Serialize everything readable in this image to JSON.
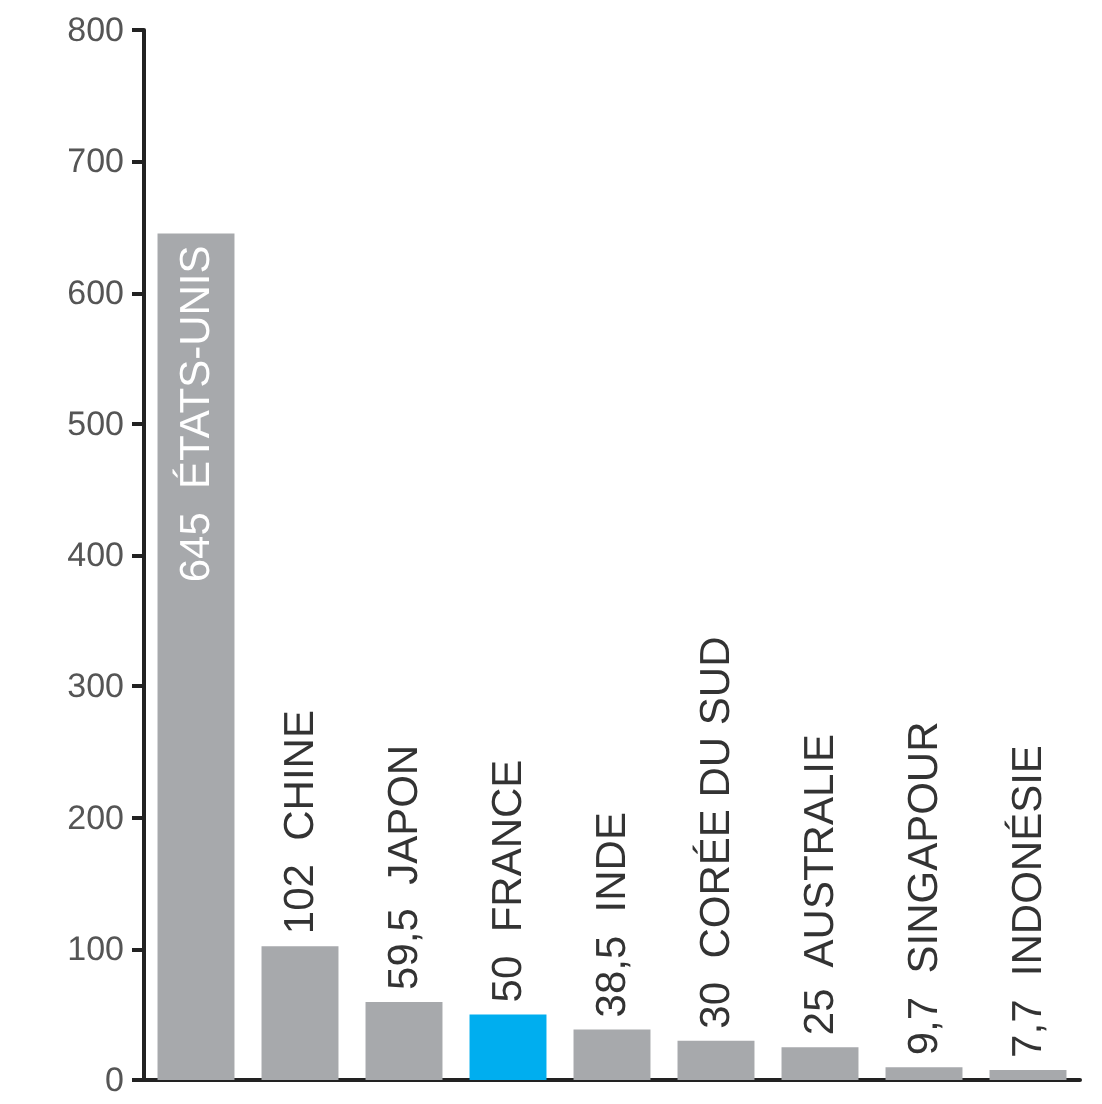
{
  "chart_data": {
    "type": "bar",
    "categories": [
      "ÉTATS-UNIS",
      "CHINE",
      "JAPON",
      "FRANCE",
      "INDE",
      "CORÉE DU SUD",
      "AUSTRALIE",
      "SINGAPOUR",
      "INDONÉSIE"
    ],
    "values": [
      645,
      102,
      59.5,
      50,
      38.5,
      30,
      25,
      9.7,
      7.7
    ],
    "value_labels": [
      "645",
      "102",
      "59,5",
      "50",
      "38,5",
      "30",
      "25",
      "9,7",
      "7,7"
    ],
    "colors": [
      "#a7a9ac",
      "#a7a9ac",
      "#a7a9ac",
      "#00aeef",
      "#a7a9ac",
      "#a7a9ac",
      "#a7a9ac",
      "#a7a9ac",
      "#a7a9ac"
    ],
    "ylim": [
      0,
      800
    ],
    "yticks": [
      0,
      100,
      200,
      300,
      400,
      500,
      600,
      700,
      800
    ],
    "grid": false,
    "tick_labels": "y"
  }
}
